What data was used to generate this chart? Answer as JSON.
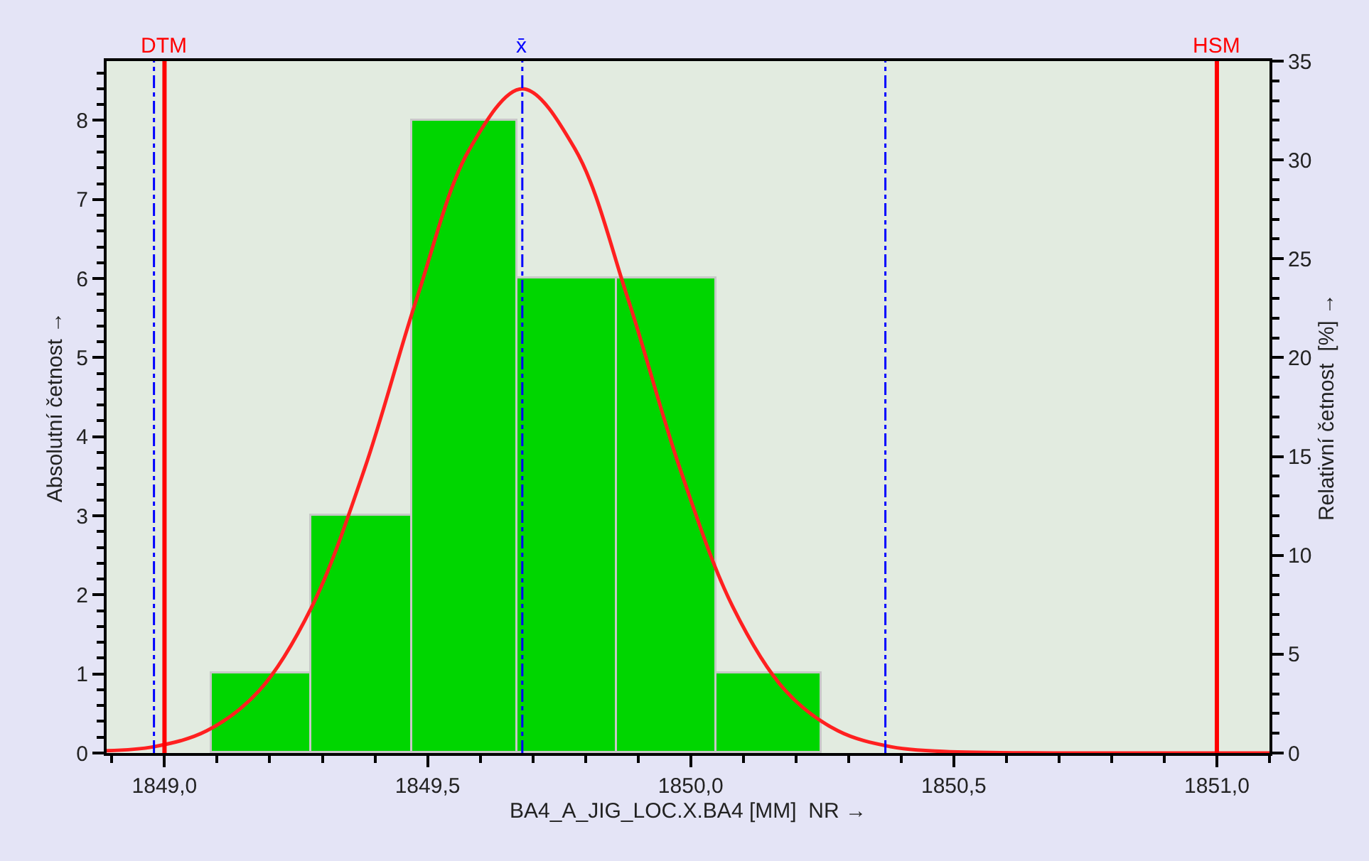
{
  "chart_data": {
    "type": "histogram",
    "bins": [
      1849.09,
      1849.28,
      1849.47,
      1849.67,
      1849.86,
      1850.05,
      1850.25
    ],
    "values": [
      1,
      3,
      8,
      6,
      6,
      1
    ],
    "color": "#00d600",
    "series": [
      {
        "type": "line",
        "color": "#ff2020",
        "x": [
          1848.89,
          1848.98,
          1849.08,
          1849.18,
          1849.28,
          1849.38,
          1849.48,
          1849.58,
          1849.68,
          1849.78,
          1849.88,
          1849.98,
          1850.08,
          1850.18,
          1850.28,
          1850.38,
          1850.48,
          1850.7,
          1851.1
        ],
        "values": [
          0.03,
          0.08,
          0.28,
          0.79,
          1.85,
          3.59,
          5.76,
          7.64,
          8.4,
          7.64,
          5.76,
          3.59,
          1.85,
          0.79,
          0.28,
          0.08,
          0.02,
          0,
          0
        ]
      }
    ],
    "xlabel": "BA4_A_JIG_LOC.X.BA4 [MM]  NR →",
    "ylabel": "Absolutní četnost →",
    "y2label": "Relativní četnost  [%] →",
    "xlim": [
      1848.89,
      1851.1
    ],
    "xticks": [
      {
        "value": 1849.0,
        "label": "1849,0"
      },
      {
        "value": 1849.5,
        "label": "1849,5"
      },
      {
        "value": 1850.0,
        "label": "1850,0"
      },
      {
        "value": 1850.5,
        "label": "1850,5"
      },
      {
        "value": 1851.0,
        "label": "1851,0"
      }
    ],
    "ylim": [
      0,
      8.75
    ],
    "yticks": [
      0,
      1,
      2,
      3,
      4,
      5,
      6,
      7,
      8
    ],
    "y2lim": [
      0,
      35
    ],
    "y2ticks": [
      0,
      5,
      10,
      15,
      20,
      25,
      30,
      35
    ],
    "ref_lines": [
      {
        "axis": "x",
        "value": 1848.98,
        "label": null,
        "color": "#0000ff",
        "line_style": "dashed"
      },
      {
        "axis": "x",
        "value": 1849.0,
        "label": "DTM",
        "color": "#ff0000",
        "line_style": "solid"
      },
      {
        "axis": "x",
        "value": 1849.68,
        "label": "x̄",
        "color": "#0000ff",
        "line_style": "dashed"
      },
      {
        "axis": "x",
        "value": 1850.37,
        "label": null,
        "color": "#0000ff",
        "line_style": "dashed"
      },
      {
        "axis": "x",
        "value": 1851.0,
        "label": "HSM",
        "color": "#ff0000",
        "line_style": "solid"
      }
    ],
    "grid": false
  }
}
